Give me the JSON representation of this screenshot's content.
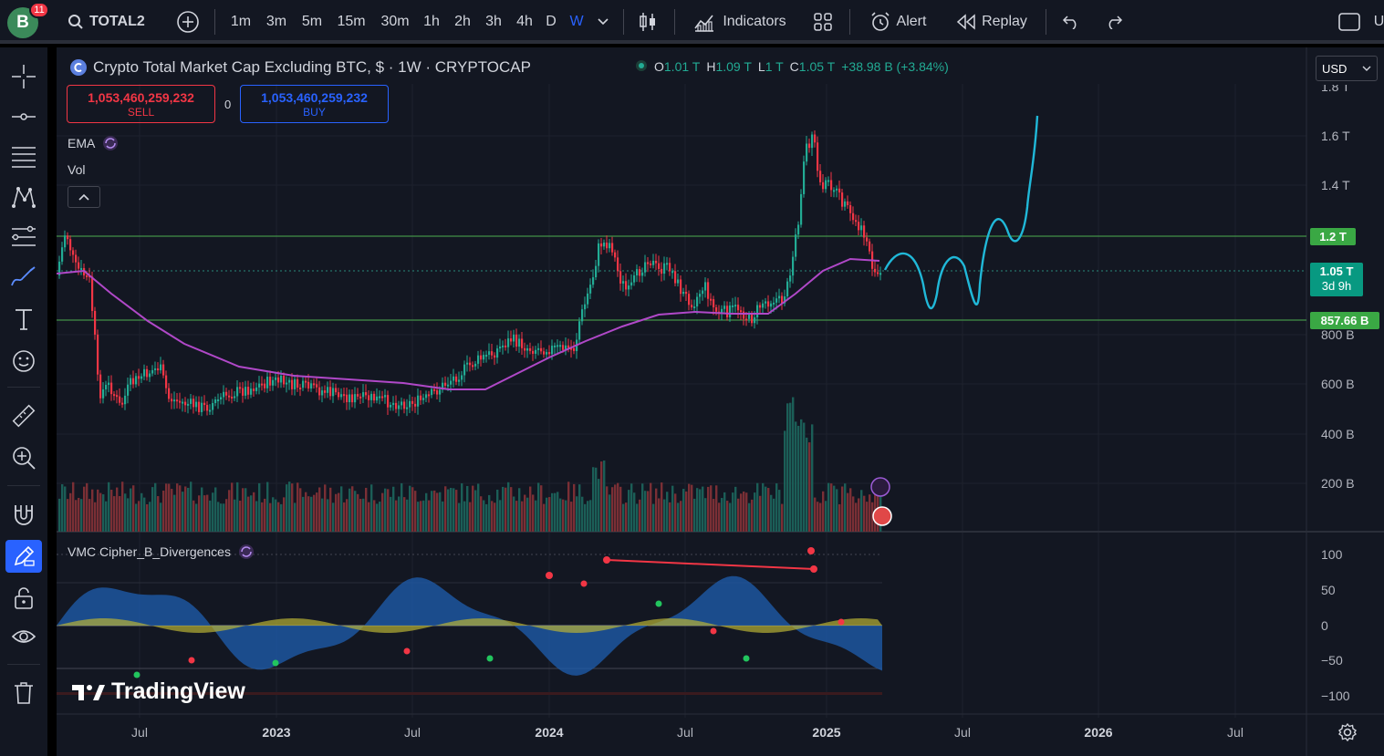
{
  "user": {
    "avatar_letter": "B",
    "notifications": "11"
  },
  "toolbar": {
    "symbol": "TOTAL2",
    "timeframes": [
      "1m",
      "3m",
      "5m",
      "15m",
      "30m",
      "1h",
      "2h",
      "3h",
      "4h",
      "D",
      "W"
    ],
    "active_timeframe": "W",
    "indicators_label": "Indicators",
    "alert_label": "Alert",
    "replay_label": "Replay",
    "right_cut_label": "U"
  },
  "legend": {
    "title": "Crypto Total Market Cap Excluding BTC, $ · 1W · CRYPTOCAP",
    "open_key": "O",
    "open": "1.01 T",
    "high_key": "H",
    "high": "1.09 T",
    "low_key": "L",
    "low": "1 T",
    "close_key": "C",
    "close": "1.05 T",
    "change": "+38.98 B (+3.84%)"
  },
  "trade": {
    "sell_value": "1,053,460,259,232",
    "sell_label": "SELL",
    "buy_value": "1,053,460,259,232",
    "buy_label": "BUY",
    "spread": "0"
  },
  "indicators": {
    "ema": "EMA",
    "vol": "Vol",
    "vmc": "VMC Cipher_B_Divergences"
  },
  "currency": "USD",
  "price_axis": [
    "1.8 T",
    "1.6 T",
    "1.4 T",
    "800 B",
    "600 B",
    "400 B",
    "200 B"
  ],
  "price_tags": {
    "resistance": "1.2 T",
    "current_price": "1.05 T",
    "countdown": "3d 9h",
    "support": "857.66 B"
  },
  "osc_axis": [
    "100",
    "50",
    "0",
    "−50",
    "−100"
  ],
  "time_axis": [
    "Jul",
    "2023",
    "Jul",
    "2024",
    "Jul",
    "2025",
    "Jul",
    "2026",
    "Jul"
  ],
  "branding": "TradingView",
  "colors": {
    "up": "#22ab94",
    "down": "#f23645",
    "ema": "#b048c8",
    "projection": "#20b8d8",
    "hline": "#4caf50",
    "accent": "#2962ff"
  }
}
